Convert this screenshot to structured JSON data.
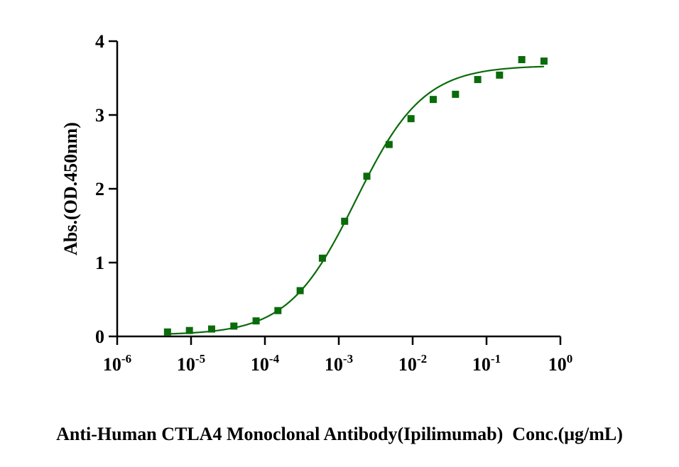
{
  "chart_data": {
    "type": "scatter",
    "title": "",
    "xlabel": "Anti-Human CTLA4 Monoclonal Antibody(Ipilimumab)  Conc.(μg/mL)",
    "ylabel": "Abs.(OD.450nm)",
    "x_scale": "log10",
    "xlim": [
      1e-06,
      1
    ],
    "ylim": [
      0,
      4
    ],
    "x_tick_labels": [
      {
        "base": "10",
        "exp": "-6"
      },
      {
        "base": "10",
        "exp": "-5"
      },
      {
        "base": "10",
        "exp": "-4"
      },
      {
        "base": "10",
        "exp": "-3"
      },
      {
        "base": "10",
        "exp": "-2"
      },
      {
        "base": "10",
        "exp": "-1"
      },
      {
        "base": "10",
        "exp": "0"
      }
    ],
    "x_tick_values": [
      1e-06,
      1e-05,
      0.0001,
      0.001,
      0.01,
      0.1,
      1
    ],
    "y_tick_labels": [
      "0",
      "1",
      "2",
      "3",
      "4"
    ],
    "y_tick_values": [
      0,
      1,
      2,
      3,
      4
    ],
    "grid": false,
    "marker_color": "#0a6b0a",
    "line_color": "#0a6b0a",
    "series": [
      {
        "name": "Anti-Human CTLA4 Monoclonal Antibody(Ipilimumab)",
        "x": [
          4.8e-06,
          9.5e-06,
          1.9e-05,
          3.8e-05,
          7.6e-05,
          0.00015,
          0.0003,
          0.0006,
          0.0012,
          0.0024,
          0.0048,
          0.0095,
          0.019,
          0.038,
          0.076,
          0.15,
          0.3,
          0.6
        ],
        "y": [
          0.06,
          0.08,
          0.1,
          0.14,
          0.21,
          0.35,
          0.62,
          1.06,
          1.56,
          2.17,
          2.6,
          2.95,
          3.21,
          3.28,
          3.48,
          3.54,
          3.75,
          3.73
        ]
      }
    ],
    "fit": {
      "model": "4PL",
      "bottom": 0.02,
      "top": 3.67,
      "ec50": 0.0017,
      "hill": 0.95,
      "x_range": [
        4.8e-06,
        0.6
      ]
    }
  }
}
